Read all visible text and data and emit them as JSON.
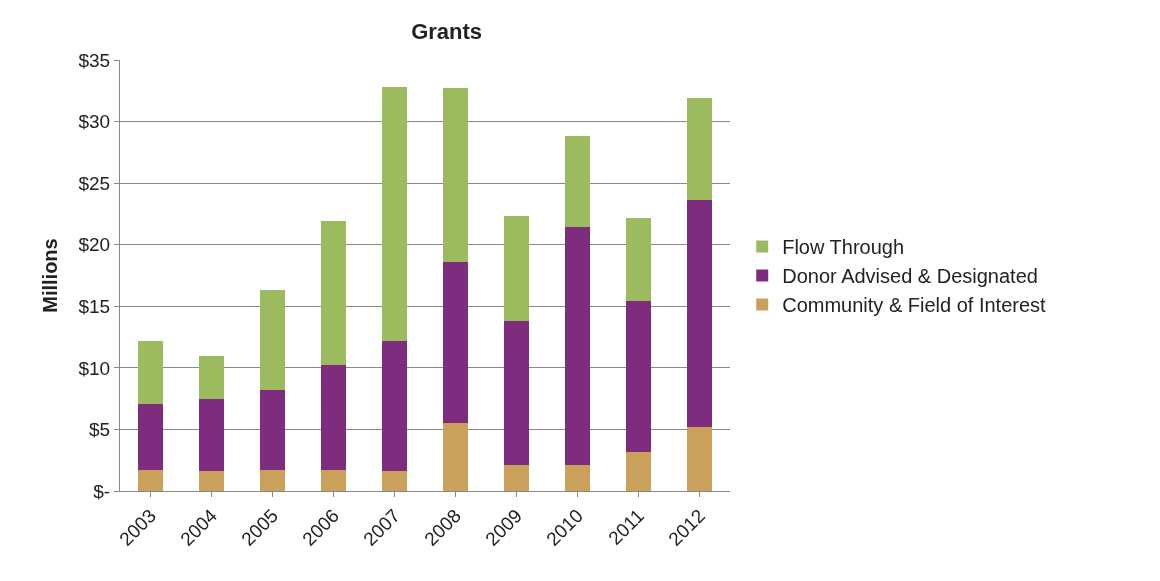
{
  "chart_data": {
    "type": "bar",
    "title": "Grants",
    "ylabel": "Millions",
    "stacked": true,
    "grid": "y",
    "legend": "right",
    "categories": [
      "2003",
      "2004",
      "2005",
      "2006",
      "2007",
      "2008",
      "2009",
      "2010",
      "2011",
      "2012"
    ],
    "series": [
      {
        "name": "Community & Field of Interest",
        "color": "#c9a15b",
        "values": [
          1.7,
          1.6,
          1.7,
          1.7,
          1.6,
          5.5,
          2.1,
          2.1,
          3.2,
          5.2
        ]
      },
      {
        "name": "Donor Advised & Designated",
        "color": "#7e2c7e",
        "values": [
          5.4,
          5.9,
          6.5,
          8.5,
          10.6,
          13.1,
          11.7,
          19.3,
          12.2,
          18.4
        ]
      },
      {
        "name": "Flow Through",
        "color": "#9cbb5e",
        "values": [
          5.1,
          3.5,
          8.1,
          11.7,
          20.6,
          14.1,
          8.5,
          7.4,
          6.8,
          8.3
        ]
      }
    ],
    "ylim": [
      0,
      35
    ],
    "yticks": [
      {
        "value": 0,
        "label": "$-"
      },
      {
        "value": 5,
        "label": "$5"
      },
      {
        "value": 10,
        "label": "$10"
      },
      {
        "value": 15,
        "label": "$15"
      },
      {
        "value": 20,
        "label": "$20"
      },
      {
        "value": 25,
        "label": "$25"
      },
      {
        "value": 30,
        "label": "$30"
      },
      {
        "value": 35,
        "label": "$35"
      }
    ]
  }
}
